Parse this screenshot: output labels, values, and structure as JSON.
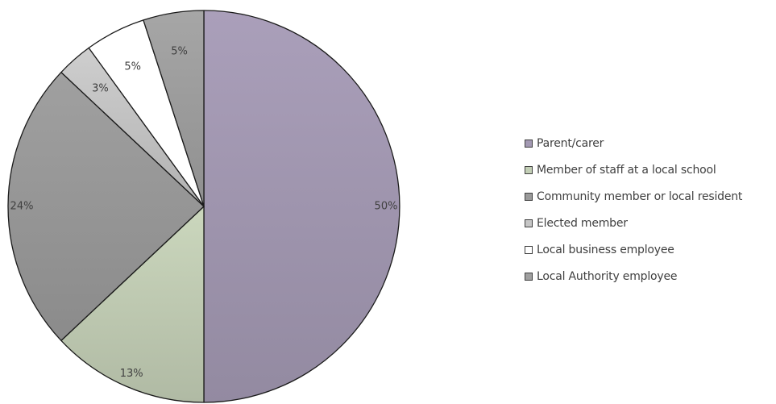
{
  "chart_data": {
    "type": "pie",
    "title": "",
    "legend_position": "right",
    "slices": [
      {
        "label": "Parent/carer",
        "value": 50,
        "value_label": "50%",
        "color": "#a399b3"
      },
      {
        "label": "Member of staff at a local school",
        "value": 13,
        "value_label": "13%",
        "color": "#c3cfb6"
      },
      {
        "label": "Community member or local resident",
        "value": 24,
        "value_label": "24%",
        "color": "#9a9a9a"
      },
      {
        "label": "Elected member",
        "value": 3,
        "value_label": "3%",
        "color": "#c6c6c6"
      },
      {
        "label": "Local business employee",
        "value": 5,
        "value_label": "5%",
        "color": "#ffffff"
      },
      {
        "label": "Local Authority employee",
        "value": 5,
        "value_label": "5%",
        "color": "#a0a0a0"
      }
    ]
  }
}
